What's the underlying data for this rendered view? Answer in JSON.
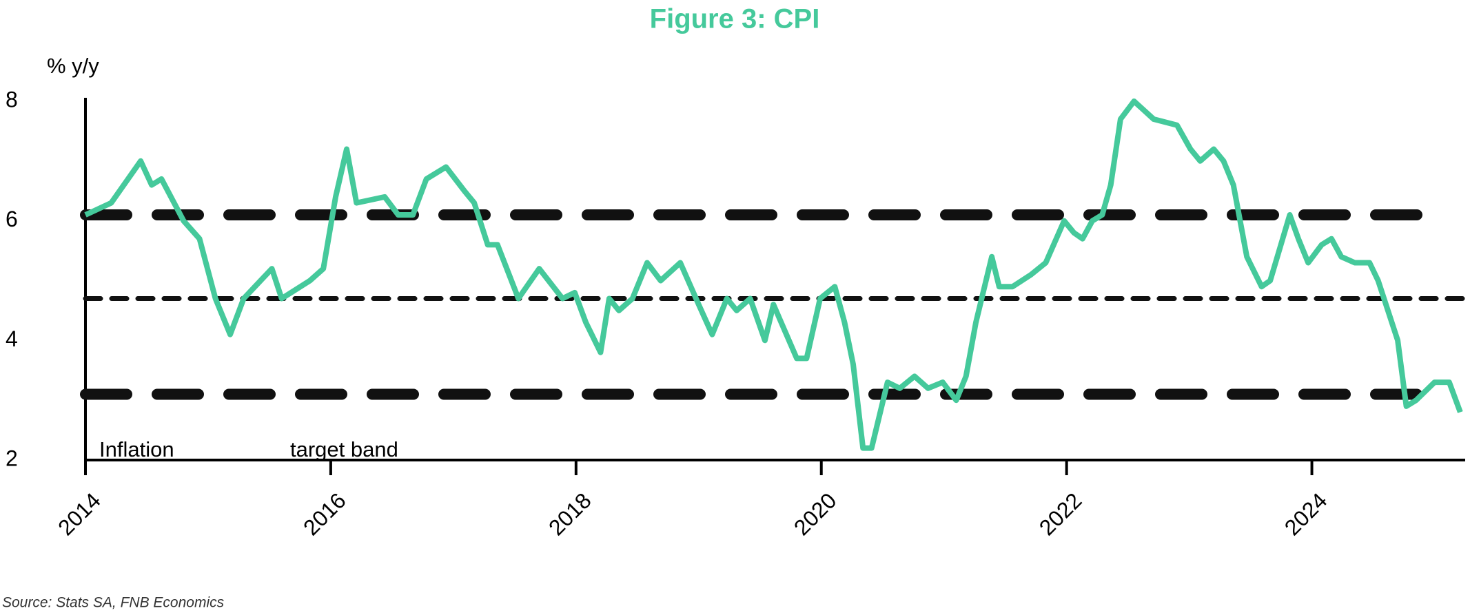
{
  "chart_data": {
    "type": "line",
    "title": "Figure 3: CPI",
    "y_label": "% y/y",
    "source": "Source: Stats SA, FNB Economics",
    "annotations": [
      "Inflation",
      "target band"
    ],
    "x": [
      2014.0,
      2014.21,
      2014.45,
      2014.54,
      2014.62,
      2014.8,
      2014.93,
      2015.06,
      2015.18,
      2015.29,
      2015.52,
      2015.6,
      2015.83,
      2015.94,
      2016.04,
      2016.13,
      2016.21,
      2016.44,
      2016.55,
      2016.67,
      2016.78,
      2016.94,
      2017.09,
      2017.17,
      2017.28,
      2017.36,
      2017.53,
      2017.7,
      2017.89,
      2017.99,
      2018.08,
      2018.2,
      2018.27,
      2018.35,
      2018.46,
      2018.58,
      2018.69,
      2018.85,
      2019.0,
      2019.11,
      2019.23,
      2019.31,
      2019.42,
      2019.54,
      2019.61,
      2019.8,
      2019.88,
      2019.99,
      2020.11,
      2020.19,
      2020.26,
      2020.34,
      2020.41,
      2020.54,
      2020.64,
      2020.76,
      2020.87,
      2020.99,
      2021.1,
      2021.18,
      2021.26,
      2021.39,
      2021.45,
      2021.56,
      2021.71,
      2021.83,
      2021.98,
      2022.06,
      2022.13,
      2022.21,
      2022.29,
      2022.36,
      2022.44,
      2022.55,
      2022.71,
      2022.9,
      2023.01,
      2023.09,
      2023.2,
      2023.28,
      2023.36,
      2023.47,
      2023.59,
      2023.66,
      2023.82,
      2023.89,
      2023.97,
      2024.08,
      2024.16,
      2024.24,
      2024.35,
      2024.47,
      2024.54,
      2024.7,
      2024.77,
      2024.85,
      2025.0,
      2025.12,
      2025.21
    ],
    "series": [
      {
        "color": "#45c99b",
        "values": [
          6.1,
          6.3,
          7.0,
          6.6,
          6.7,
          6.0,
          5.7,
          4.7,
          4.1,
          4.7,
          5.2,
          4.7,
          5.0,
          5.2,
          6.4,
          7.2,
          6.3,
          6.4,
          6.1,
          6.1,
          6.7,
          6.9,
          6.5,
          6.3,
          5.6,
          5.6,
          4.7,
          5.2,
          4.7,
          4.8,
          4.3,
          3.8,
          4.7,
          4.5,
          4.7,
          5.3,
          5.0,
          5.3,
          4.6,
          4.1,
          4.7,
          4.5,
          4.7,
          4.0,
          4.6,
          3.7,
          3.7,
          4.7,
          4.9,
          4.3,
          3.6,
          2.2,
          2.2,
          3.3,
          3.2,
          3.4,
          3.2,
          3.3,
          3.0,
          3.4,
          4.3,
          5.4,
          4.9,
          4.9,
          5.1,
          5.3,
          6.0,
          5.8,
          5.7,
          6.0,
          6.1,
          6.6,
          7.7,
          8.0,
          7.7,
          7.6,
          7.2,
          7.0,
          7.2,
          7.0,
          6.6,
          5.4,
          4.9,
          5.0,
          6.1,
          5.7,
          5.3,
          5.6,
          5.7,
          5.4,
          5.3,
          5.3,
          5.0,
          4.0,
          2.9,
          3.0,
          3.3,
          3.3,
          2.8
        ]
      }
    ],
    "reference_lines": [
      {
        "value": 6.1,
        "style": "heavy-dash",
        "color": "#111111"
      },
      {
        "value": 4.7,
        "style": "dash",
        "color": "#111111"
      },
      {
        "value": 3.1,
        "style": "heavy-dash",
        "color": "#111111"
      }
    ],
    "xlim": [
      2014,
      2025.25
    ],
    "xticks": [
      2014,
      2016,
      2018,
      2020,
      2022,
      2024
    ],
    "ylim": [
      2,
      8
    ],
    "yticks": [
      2,
      4,
      6,
      8
    ]
  }
}
